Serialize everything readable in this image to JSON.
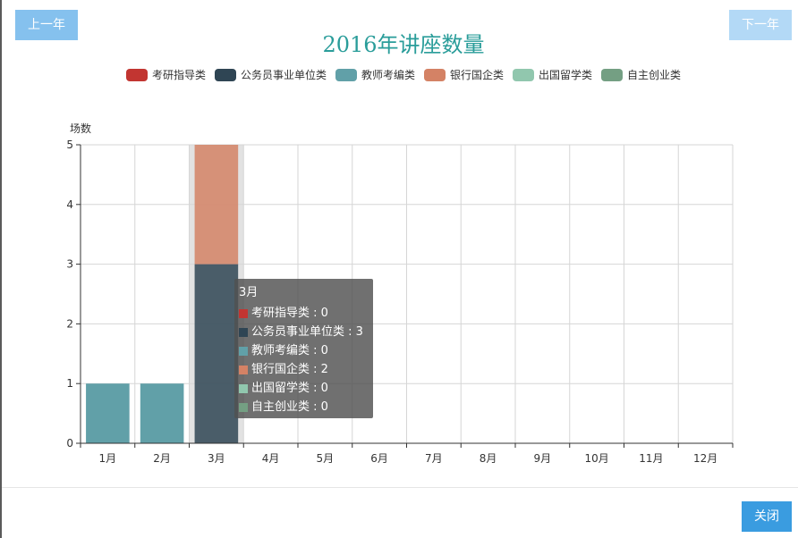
{
  "nav": {
    "prev_label": "上一年",
    "next_label": "下一年",
    "close_label": "关闭"
  },
  "chart_data": {
    "type": "bar",
    "stacked": true,
    "title": "2016年讲座数量",
    "ylabel": "场数",
    "xlabel": "",
    "ylim": [
      0,
      5
    ],
    "yticks": [
      "0",
      "1",
      "2",
      "3",
      "4",
      "5"
    ],
    "categories": [
      "1月",
      "2月",
      "3月",
      "4月",
      "5月",
      "6月",
      "7月",
      "8月",
      "9月",
      "10月",
      "11月",
      "12月"
    ],
    "legend_position": "top-center",
    "grid": true,
    "series": [
      {
        "name": "考研指导类",
        "color": "#c23531",
        "values": [
          0,
          0,
          0,
          0,
          0,
          0,
          0,
          0,
          0,
          0,
          0,
          0
        ]
      },
      {
        "name": "公务员事业单位类",
        "color": "#2f4554",
        "values": [
          0,
          0,
          3,
          0,
          0,
          0,
          0,
          0,
          0,
          0,
          0,
          0
        ]
      },
      {
        "name": "教师考编类",
        "color": "#61a0a8",
        "values": [
          1,
          1,
          0,
          0,
          0,
          0,
          0,
          0,
          0,
          0,
          0,
          0
        ]
      },
      {
        "name": "银行国企类",
        "color": "#d48265",
        "values": [
          0,
          0,
          2,
          0,
          0,
          0,
          0,
          0,
          0,
          0,
          0,
          0
        ]
      },
      {
        "name": "出国留学类",
        "color": "#91c7ae",
        "values": [
          0,
          0,
          0,
          0,
          0,
          0,
          0,
          0,
          0,
          0,
          0,
          0
        ]
      },
      {
        "name": "自主创业类",
        "color": "#749f83",
        "values": [
          0,
          0,
          0,
          0,
          0,
          0,
          0,
          0,
          0,
          0,
          0,
          0
        ]
      }
    ],
    "highlight_index": 2,
    "tooltip": {
      "title": "3月",
      "rows": [
        {
          "label": "考研指导类 : 0",
          "color": "#c23531"
        },
        {
          "label": "公务员事业单位类 : 3",
          "color": "#2f4554"
        },
        {
          "label": "教师考编类 : 0",
          "color": "#61a0a8"
        },
        {
          "label": "银行国企类 : 2",
          "color": "#d48265"
        },
        {
          "label": "出国留学类 : 0",
          "color": "#91c7ae"
        },
        {
          "label": "自主创业类 : 0",
          "color": "#749f83"
        }
      ]
    }
  }
}
